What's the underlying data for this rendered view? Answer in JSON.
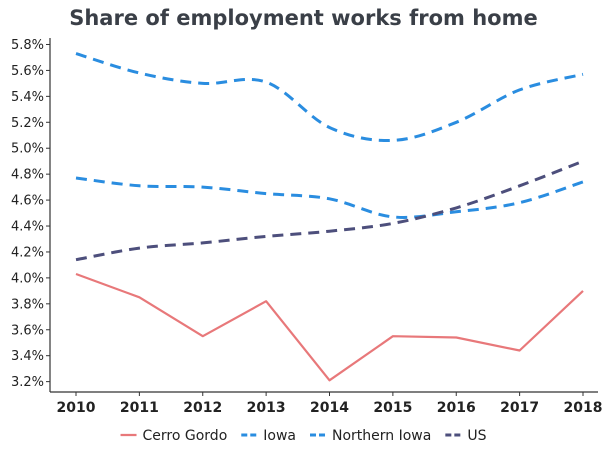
{
  "chart_data": {
    "type": "line",
    "title": "Share of employment works from home",
    "xlabel": "",
    "ylabel": "",
    "x": [
      "2010",
      "2011",
      "2012",
      "2013",
      "2014",
      "2015",
      "2016",
      "2017",
      "2018"
    ],
    "yticks": [
      "3.2%",
      "3.4%",
      "3.6%",
      "3.8%",
      "4.0%",
      "4.2%",
      "4.4%",
      "4.6%",
      "4.8%",
      "5.0%",
      "5.2%",
      "5.4%",
      "5.6%",
      "5.8%"
    ],
    "ylim": [
      3.12,
      5.85
    ],
    "grid": false,
    "legend_position": "bottom",
    "series": [
      {
        "name": "Cerro Gordo",
        "color": "#e8787a",
        "style": "solid",
        "values": [
          4.03,
          3.85,
          3.55,
          3.82,
          3.21,
          3.55,
          3.54,
          3.44,
          3.9
        ]
      },
      {
        "name": "Iowa",
        "color": "#2a8de0",
        "style": "dashed",
        "values": [
          4.77,
          4.71,
          4.7,
          4.65,
          4.61,
          4.47,
          4.51,
          4.58,
          4.74
        ]
      },
      {
        "name": "Northern Iowa",
        "color": "#2a8de0",
        "style": "dashed",
        "values": [
          5.73,
          5.58,
          5.5,
          5.51,
          5.16,
          5.06,
          5.2,
          5.45,
          5.57
        ]
      },
      {
        "name": "US",
        "color": "#4d4f7c",
        "style": "dashed",
        "values": [
          4.14,
          4.23,
          4.27,
          4.32,
          4.36,
          4.42,
          4.54,
          4.71,
          4.9
        ]
      }
    ]
  }
}
